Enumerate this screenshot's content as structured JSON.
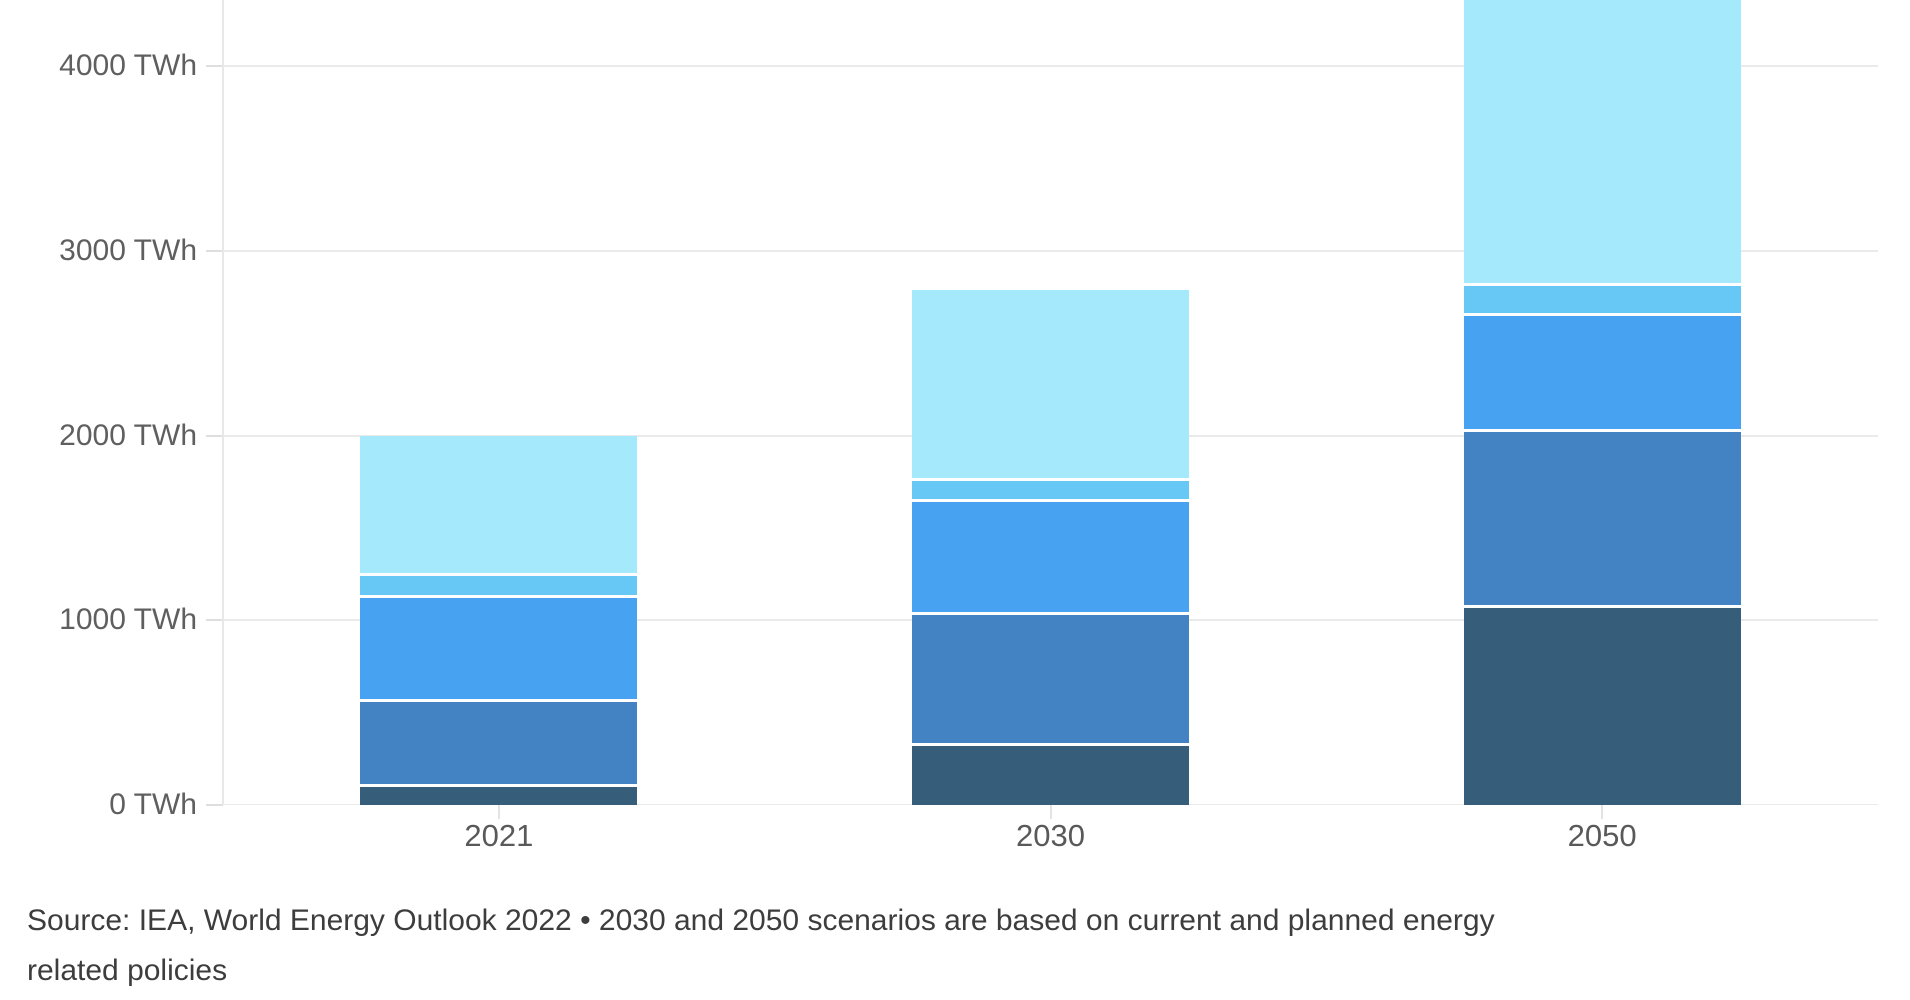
{
  "chart_data": {
    "type": "bar",
    "stacked": true,
    "unit": "TWh",
    "categories": [
      "2021",
      "2030",
      "2050"
    ],
    "series": [
      {
        "name": "dark-slate-blue-bottom",
        "color": "#365d7a",
        "values": [
          115,
          335,
          1085
        ]
      },
      {
        "name": "steel-blue",
        "color": "#4483c3",
        "values": [
          460,
          710,
          950
        ]
      },
      {
        "name": "bright-blue",
        "color": "#47a3f1",
        "values": [
          560,
          610,
          630
        ]
      },
      {
        "name": "sky-blue-thin",
        "color": "#67c8f6",
        "values": [
          120,
          115,
          160
        ]
      },
      {
        "name": "pale-cyan-top",
        "color": "#a5e9fc",
        "values": [
          745,
          1020,
          1560
        ]
      }
    ],
    "totals_visible": [
      2000,
      2790,
      4360
    ],
    "title": "",
    "xlabel": "",
    "ylabel": "",
    "ylim": [
      0,
      4363
    ],
    "grid": true,
    "legend": "none",
    "top_clipped_category": "2050"
  },
  "axis": {
    "y_ticks": [
      {
        "label": "0 TWh",
        "value": 0
      },
      {
        "label": "1000 TWh",
        "value": 1000
      },
      {
        "label": "2000 TWh",
        "value": 2000
      },
      {
        "label": "3000 TWh",
        "value": 3000
      },
      {
        "label": "4000 TWh",
        "value": 4000
      }
    ],
    "x_ticks": [
      "2021",
      "2030",
      "2050"
    ]
  },
  "footer": {
    "source_line1": "Source: IEA, World Energy Outlook 2022 • 2030 and 2050 scenarios are based on current and planned energy",
    "source_line2": "related policies"
  },
  "colors": {
    "background": "#ffffff",
    "gridline": "#eaeaea",
    "axis_line": "#e8e8e8",
    "tick": "#dedede",
    "axis_label_text": "#5f5f5f",
    "source_text": "#3d3d3d",
    "segment_separator": "#ffffff"
  }
}
